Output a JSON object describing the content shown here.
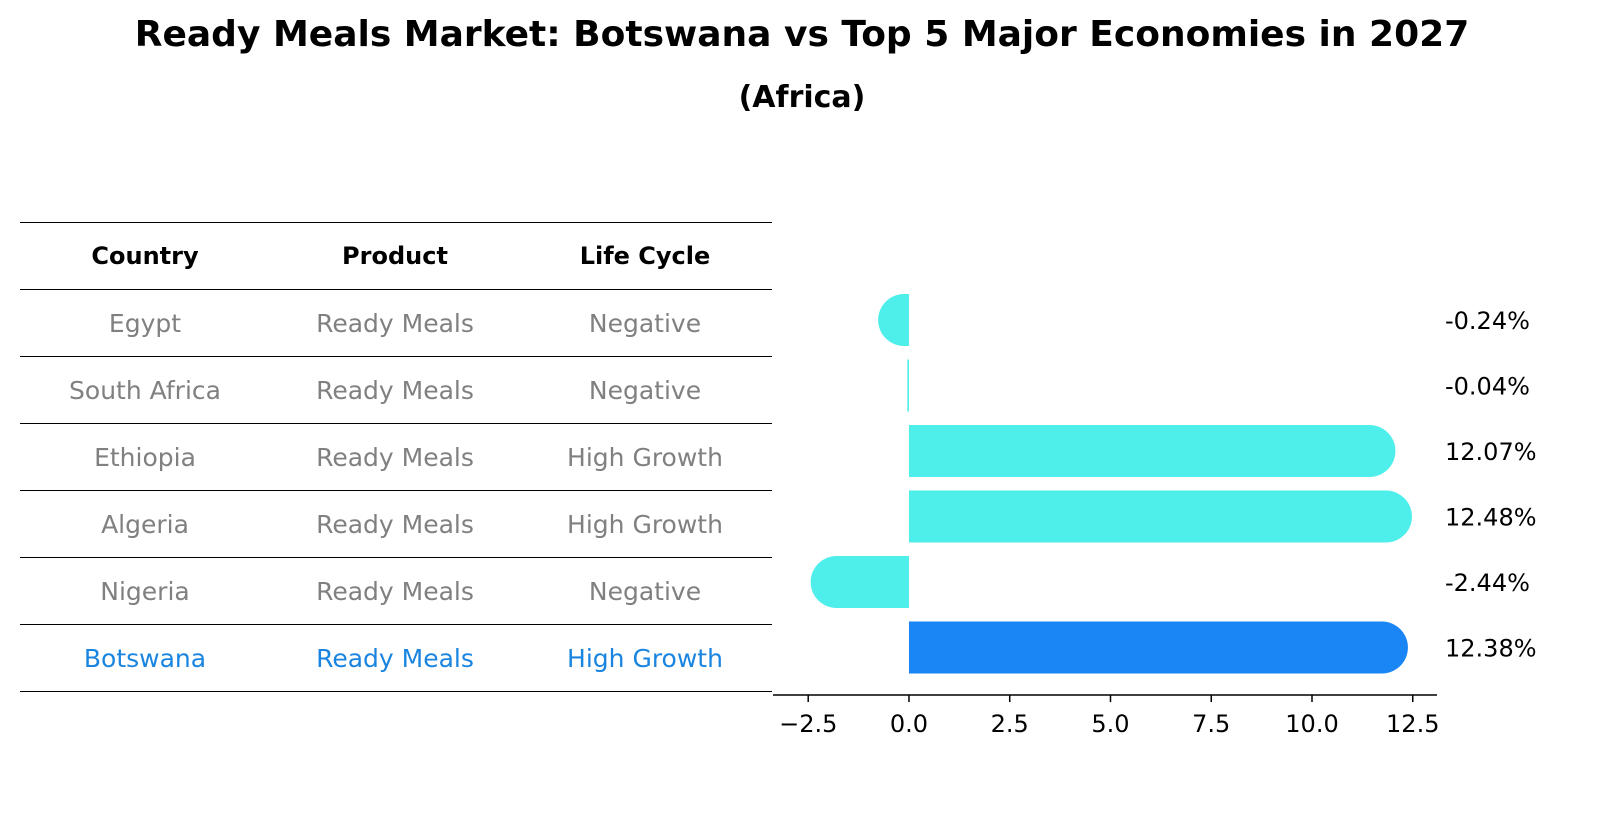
{
  "title": "Ready Meals Market: Botswana vs Top 5 Major Economies in 2027",
  "subtitle": "(Africa)",
  "table": {
    "headers": [
      "Country",
      "Product",
      "Life Cycle"
    ],
    "rows": [
      [
        "Egypt",
        "Ready Meals",
        "Negative"
      ],
      [
        "South Africa",
        "Ready Meals",
        "Negative"
      ],
      [
        "Ethiopia",
        "Ready Meals",
        "High Growth"
      ],
      [
        "Algeria",
        "Ready Meals",
        "High Growth"
      ],
      [
        "Nigeria",
        "Ready Meals",
        "Negative"
      ],
      [
        "Botswana",
        "Ready Meals",
        "High Growth"
      ]
    ]
  },
  "colors": {
    "bar": "#4eeeea",
    "highlight_bar": "#1a85f5",
    "highlight_text": "#1a85e0",
    "muted_text": "#808080"
  },
  "chart_data": {
    "type": "bar",
    "orientation": "horizontal",
    "categories": [
      "Egypt",
      "South Africa",
      "Ethiopia",
      "Algeria",
      "Nigeria",
      "Botswana"
    ],
    "values": [
      -0.24,
      -0.04,
      12.07,
      12.48,
      -2.44,
      12.38
    ],
    "value_labels": [
      "-0.24%",
      "-0.04%",
      "12.07%",
      "12.48%",
      "-2.44%",
      "12.38%"
    ],
    "highlight": "Botswana",
    "xlim": [
      -3.2,
      13.3
    ],
    "xticks": [
      -2.5,
      0.0,
      2.5,
      5.0,
      7.5,
      10.0,
      12.5
    ],
    "xtick_labels": [
      "−2.5",
      "0.0",
      "2.5",
      "5.0",
      "7.5",
      "10.0",
      "12.5"
    ],
    "xlabel": "",
    "ylabel": ""
  }
}
